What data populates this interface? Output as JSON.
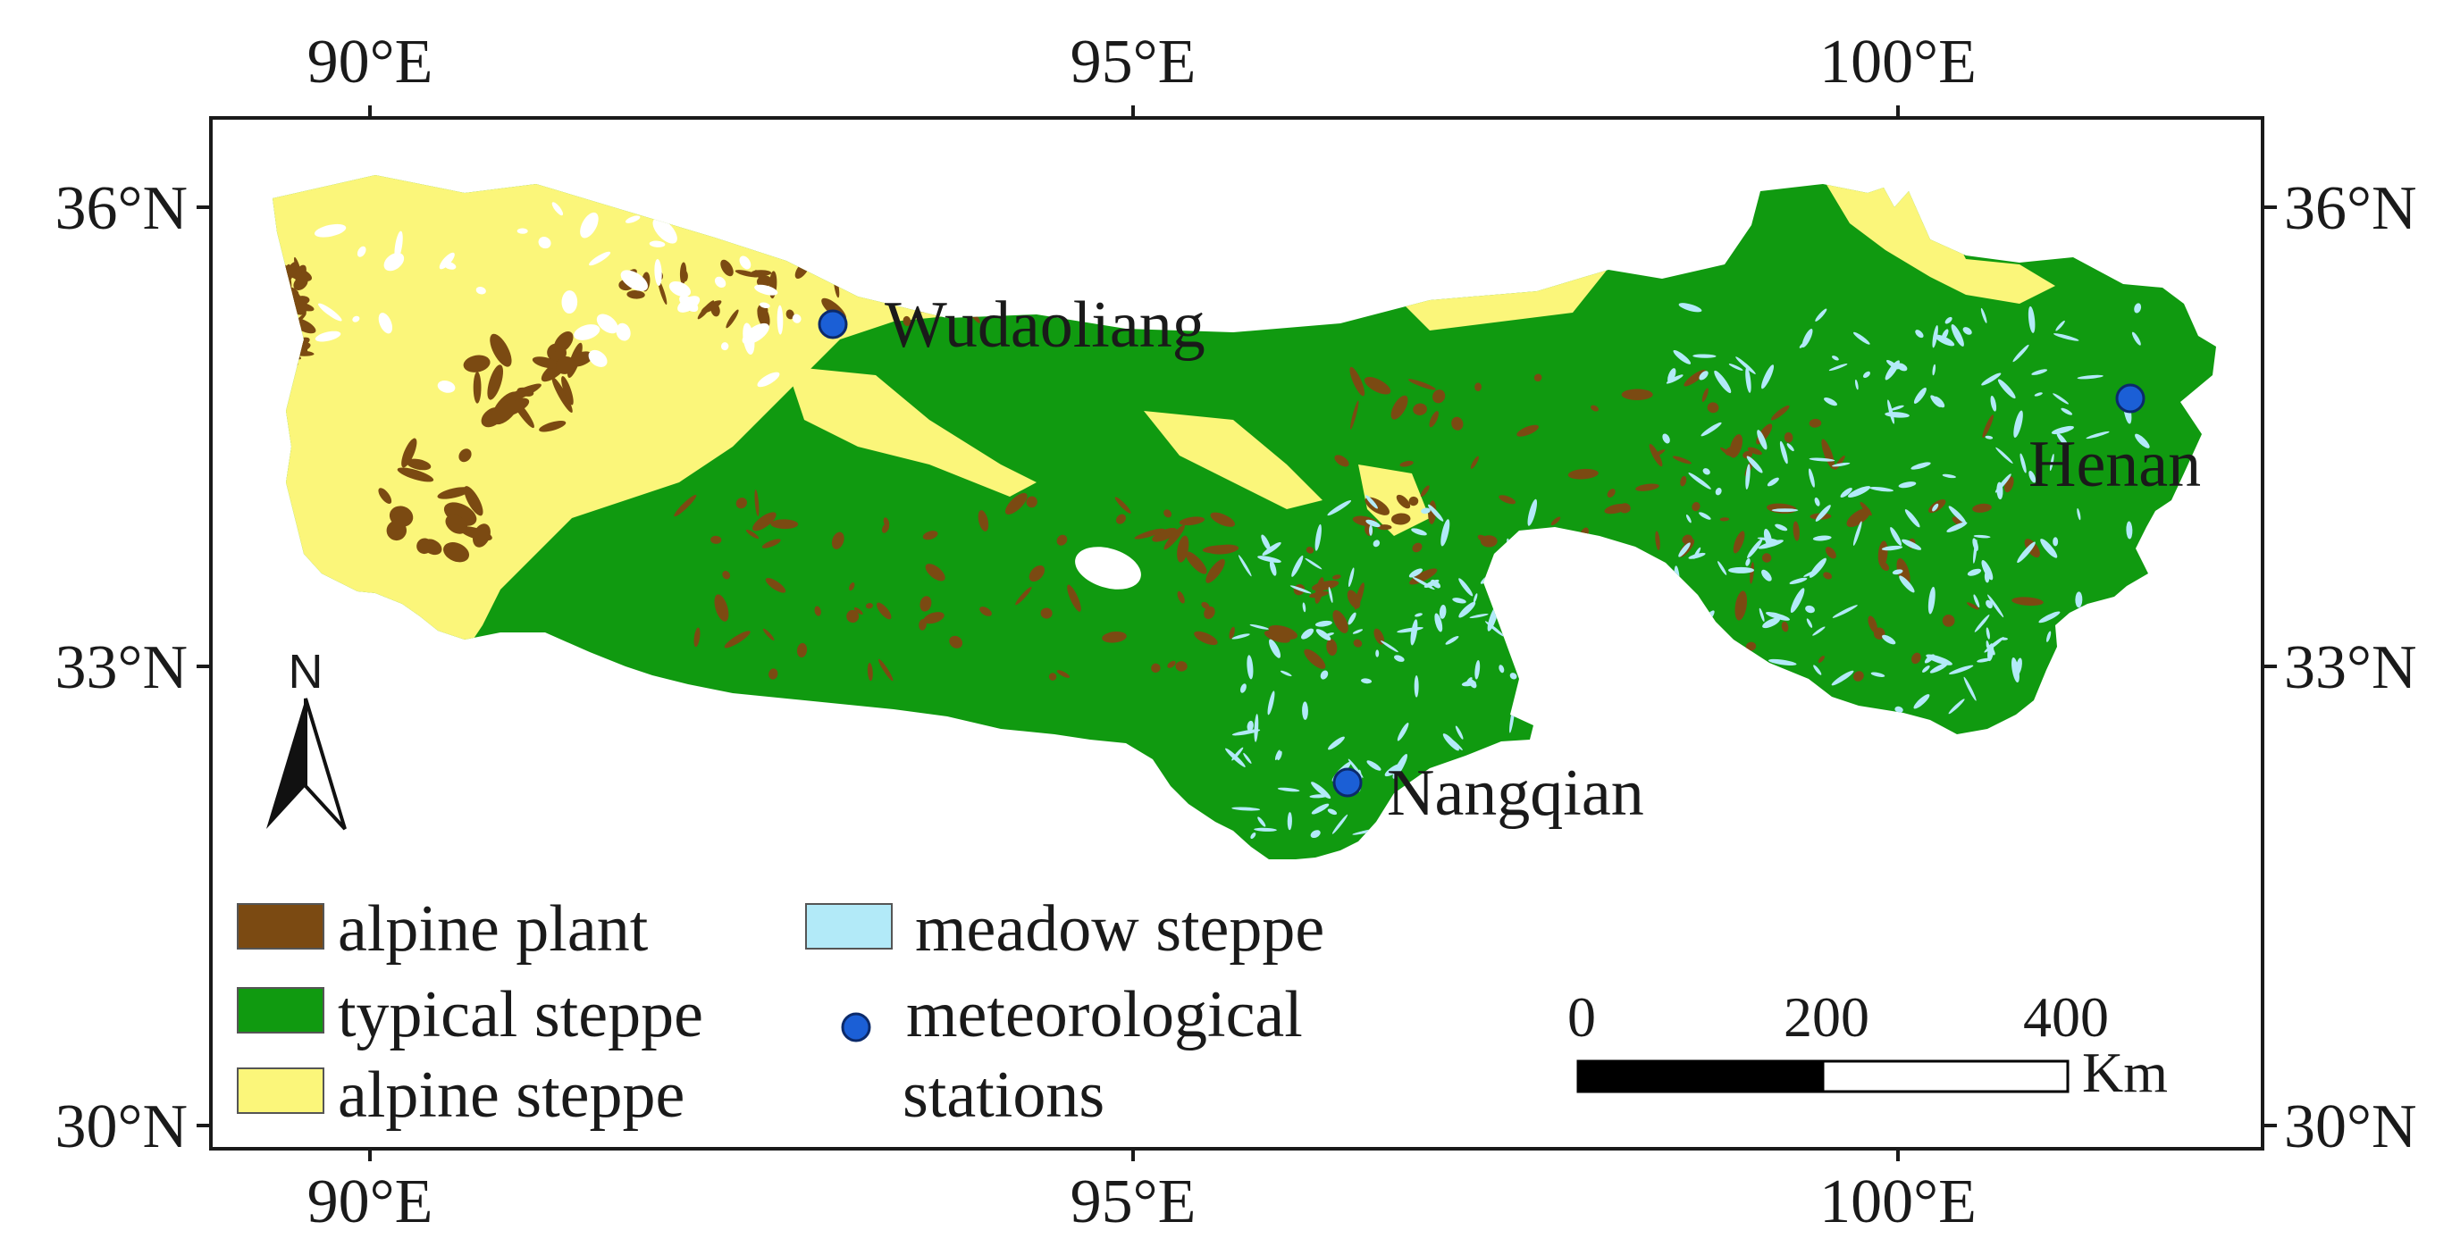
{
  "map": {
    "axes": {
      "x_ticks": [
        {
          "value": 90,
          "label": "90°E"
        },
        {
          "value": 95,
          "label": "95°E"
        },
        {
          "value": 100,
          "label": "100°E"
        }
      ],
      "y_ticks": [
        {
          "value": 36,
          "label": "36°N"
        },
        {
          "value": 33,
          "label": "33°N"
        },
        {
          "value": 30,
          "label": "30°N"
        }
      ]
    },
    "stations": [
      {
        "name": "Wudaoliang",
        "lon": 93.08,
        "lat": 35.22
      },
      {
        "name": "Henan",
        "lon": 101.6,
        "lat": 34.73
      },
      {
        "name": "Nangqian",
        "lon": 96.48,
        "lat": 32.2
      }
    ],
    "legend": {
      "items": [
        {
          "key": "alpine_plant",
          "label": "alpine plant",
          "color": "#7b4a12"
        },
        {
          "key": "typical_steppe",
          "label": "typical steppe",
          "color": "#109a10"
        },
        {
          "key": "alpine_steppe",
          "label": "alpine steppe",
          "color": "#fbf67a"
        },
        {
          "key": "meadow_steppe",
          "label": "meadow steppe",
          "color": "#b2eaf8"
        },
        {
          "key": "stations",
          "label_line1": "meteorological",
          "label_line2": "stations",
          "color": "#1b5fd6"
        }
      ]
    },
    "north_arrow": {
      "letter": "N"
    },
    "scale_bar": {
      "labels": [
        "0",
        "200",
        "400"
      ],
      "unit": "Km"
    },
    "colors": {
      "alpine_plant": "#7b4a12",
      "typical_steppe": "#109a10",
      "alpine_steppe": "#fbf67a",
      "meadow_steppe": "#b2eaf8",
      "station": "#1b5fd6"
    }
  }
}
